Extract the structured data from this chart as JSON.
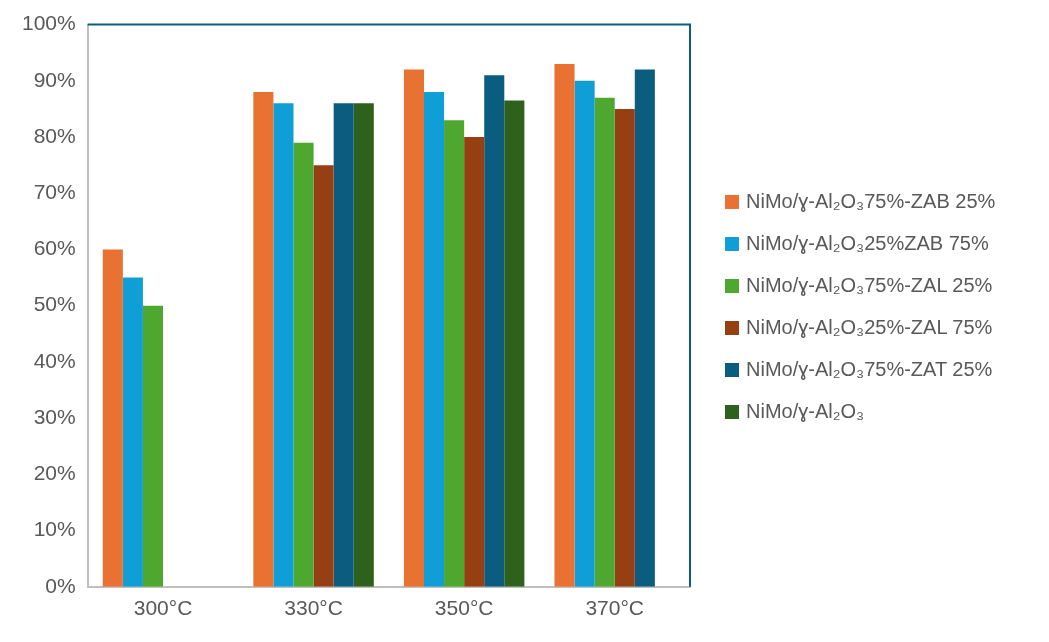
{
  "chart_data": {
    "type": "bar",
    "categories": [
      "300°C",
      "330°C",
      "350°C",
      "370°C"
    ],
    "series": [
      {
        "name": "NiMo/ɣ-Al₂O₃75%-ZAB 25%",
        "color": "#e97132",
        "values": [
          60,
          88,
          92,
          93
        ]
      },
      {
        "name": "NiMo/ɣ-Al₂O₃25%ZAB 75%",
        "color": "#0f9ed5",
        "values": [
          55,
          86,
          88,
          90
        ]
      },
      {
        "name": "NiMo/ɣ-Al₂O₃75%-ZAL 25%",
        "color": "#4ea72e",
        "values": [
          50,
          79,
          83,
          87
        ]
      },
      {
        "name": "NiMo/ɣ-Al₂O₃25%-ZAL 75%",
        "color": "#953f12",
        "values": [
          null,
          75,
          80,
          85
        ]
      },
      {
        "name": "NiMo/ɣ-Al₂O₃75%-ZAT 25%",
        "color": "#0b5d80",
        "values": [
          null,
          86,
          91,
          92
        ]
      },
      {
        "name": "NiMo/ɣ-Al₂O₃",
        "color": "#2e611c",
        "values": [
          null,
          86,
          86.5,
          null
        ]
      }
    ],
    "ylim": [
      0,
      100
    ],
    "yticks": [
      {
        "value": 0,
        "label": "0%"
      },
      {
        "value": 10,
        "label": "10%"
      },
      {
        "value": 20,
        "label": "20%"
      },
      {
        "value": 30,
        "label": "30%"
      },
      {
        "value": 40,
        "label": "40%"
      },
      {
        "value": 50,
        "label": "50%"
      },
      {
        "value": 60,
        "label": "60%"
      },
      {
        "value": 70,
        "label": "70%"
      },
      {
        "value": 80,
        "label": "80%"
      },
      {
        "value": 90,
        "label": "90%"
      },
      {
        "value": 100,
        "label": "100%"
      }
    ],
    "grid": false,
    "legend": "right"
  }
}
